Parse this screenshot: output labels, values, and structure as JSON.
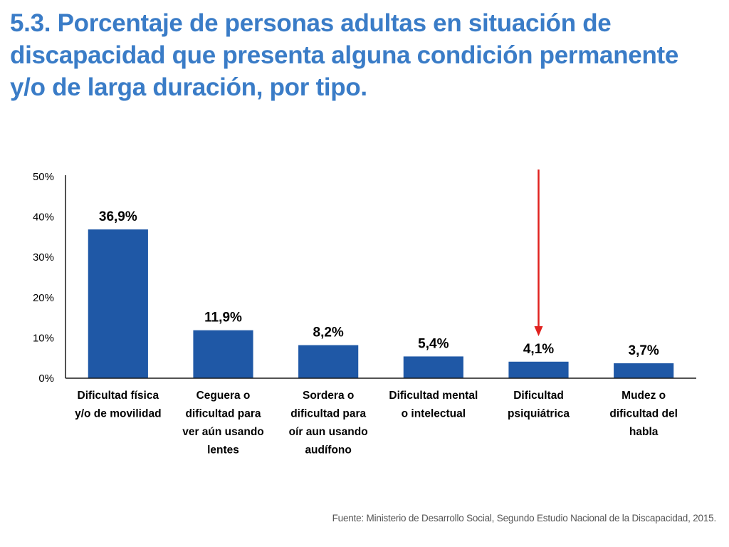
{
  "slide": {
    "title": "5.3. Porcentaje de personas adultas en situación de discapacidad que presenta alguna condición permanente y/o de larga duración, por tipo.",
    "source": "Fuente: Ministerio de Desarrollo Social, Segundo Estudio Nacional de la Discapacidad, 2015."
  },
  "colors": {
    "title": "#3a7cc7",
    "bar": "#1f58a6",
    "axis": "#1a1a1a",
    "arrow": "#e0221f",
    "source": "#555555"
  },
  "chart_data": {
    "type": "bar",
    "title": "",
    "xlabel": "",
    "ylabel": "",
    "ylim": [
      0,
      50
    ],
    "yticks": [
      "0%",
      "10%",
      "20%",
      "30%",
      "40%",
      "50%"
    ],
    "grid": false,
    "legend": "none",
    "categories": [
      [
        "Dificultad física",
        "y/o de movilidad"
      ],
      [
        "Ceguera o",
        "dificultad para",
        "ver aún usando",
        "lentes"
      ],
      [
        "Sordera o",
        "dificultad para",
        "oír aun usando",
        "audífono"
      ],
      [
        "Dificultad mental",
        "o intelectual"
      ],
      [
        "Dificultad",
        "psiquiátrica"
      ],
      [
        "Mudez o",
        "dificultad del",
        "habla"
      ]
    ],
    "values": [
      36.9,
      11.9,
      8.2,
      5.4,
      4.1,
      3.7
    ],
    "data_labels": [
      "36,9%",
      "11,9%",
      "8,2%",
      "5,4%",
      "4,1%",
      "3,7%"
    ],
    "annotation": {
      "type": "arrow",
      "color": "red",
      "points_to_category_index": 4
    }
  }
}
